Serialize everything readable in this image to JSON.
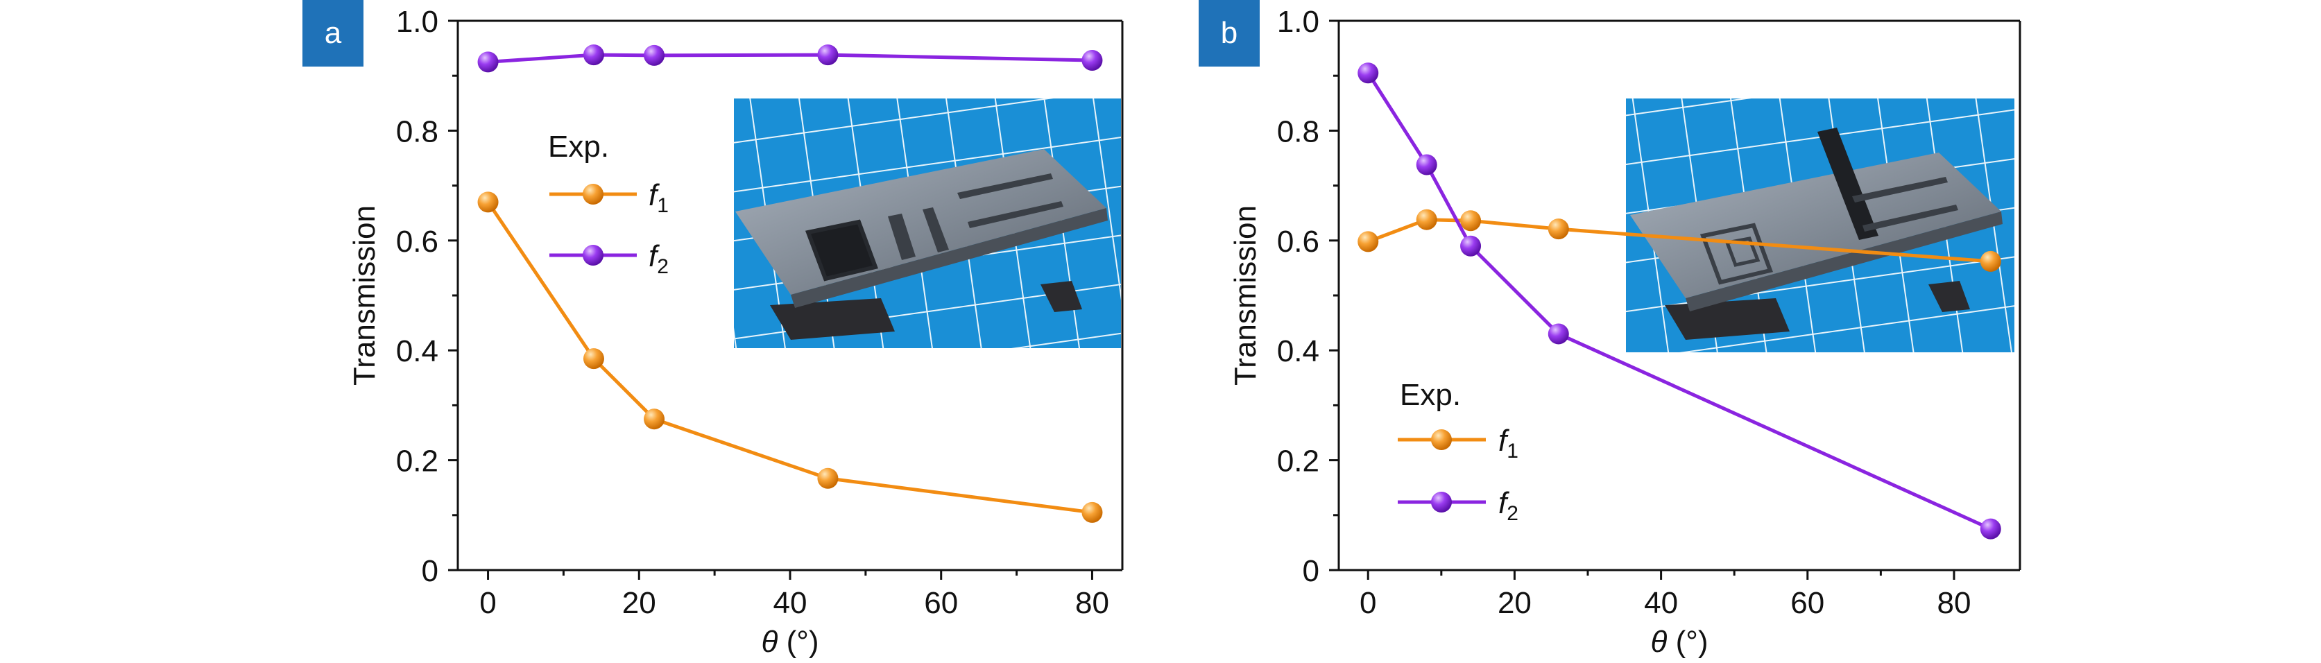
{
  "colors": {
    "f1": "#f28c12",
    "f2": "#8a24e0",
    "panel_label_bg": "#1f72b8",
    "photo_bg": "#1a8fd6",
    "photo_grid": "#e8f4fb"
  },
  "chart_data": [
    {
      "type": "line",
      "panel_label": "a",
      "xlabel_symbol": "θ",
      "xlabel_unit": " (°)",
      "ylabel": "Transmission",
      "xlim": [
        -4,
        84
      ],
      "ylim": [
        0,
        1.0
      ],
      "xticks": [
        0,
        20,
        40,
        60,
        80
      ],
      "xtick_labels": [
        "0",
        "20",
        "40",
        "60",
        "80"
      ],
      "yticks": [
        0,
        0.2,
        0.4,
        0.6,
        0.8,
        1.0
      ],
      "ytick_labels": [
        "0",
        "0.2",
        "0.4",
        "0.6",
        "0.8",
        "1.0"
      ],
      "legend_title": "Exp.",
      "legend_placement": "left, middle",
      "inset": "photo of cut metal sheet with rectangular slot pattern on foam, blue grid background",
      "series": [
        {
          "name": "f",
          "subscript": "1",
          "color_key": "f1",
          "x": [
            0,
            14,
            22,
            45,
            80
          ],
          "y": [
            0.67,
            0.385,
            0.275,
            0.167,
            0.105
          ]
        },
        {
          "name": "f",
          "subscript": "2",
          "color_key": "f2",
          "x": [
            0,
            14,
            22,
            45,
            80
          ],
          "y": [
            0.925,
            0.938,
            0.937,
            0.938,
            0.928
          ]
        }
      ]
    },
    {
      "type": "line",
      "panel_label": "b",
      "xlabel_symbol": "θ",
      "xlabel_unit": " (°)",
      "ylabel": "Transmission",
      "xlim": [
        -4,
        89
      ],
      "ylim": [
        0,
        1.0
      ],
      "xticks": [
        0,
        20,
        40,
        60,
        80
      ],
      "xtick_labels": [
        "0",
        "20",
        "40",
        "60",
        "80"
      ],
      "yticks": [
        0,
        0.2,
        0.4,
        0.6,
        0.8,
        1.0
      ],
      "ytick_labels": [
        "0",
        "0.2",
        "0.4",
        "0.6",
        "0.8",
        "1.0"
      ],
      "legend_title": "Exp.",
      "legend_placement": "bottom-left",
      "inset": "photo of cut metal sheet with rotated bar over slot pattern on foam, blue grid background",
      "series": [
        {
          "name": "f",
          "subscript": "1",
          "color_key": "f1",
          "x": [
            0,
            8,
            14,
            26,
            85
          ],
          "y": [
            0.598,
            0.638,
            0.636,
            0.621,
            0.562
          ]
        },
        {
          "name": "f",
          "subscript": "2",
          "color_key": "f2",
          "x": [
            0,
            8,
            14,
            26,
            85
          ],
          "y": [
            0.905,
            0.738,
            0.59,
            0.43,
            0.075
          ]
        }
      ]
    }
  ]
}
